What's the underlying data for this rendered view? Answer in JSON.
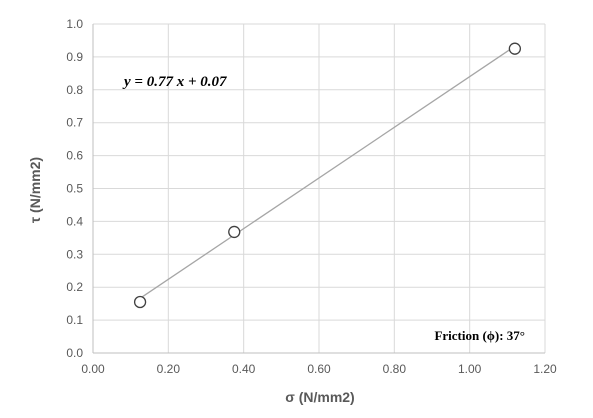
{
  "chart_data": {
    "type": "scatter",
    "title": "",
    "xlabel": "σ (N/mm2)",
    "ylabel": "τ  (N/mm2)",
    "xlim": [
      0,
      1.2
    ],
    "ylim": [
      0,
      1.0
    ],
    "x_ticks": [
      "0.00",
      "0.20",
      "0.40",
      "0.60",
      "0.80",
      "1.00",
      "1.20"
    ],
    "y_ticks": [
      "0.0",
      "0.1",
      "0.2",
      "0.3",
      "0.4",
      "0.5",
      "0.6",
      "0.7",
      "0.8",
      "0.9",
      "1.0"
    ],
    "grid": true,
    "legend": "none",
    "series": [
      {
        "points": [
          {
            "x": 0.125,
            "y": 0.155
          },
          {
            "x": 0.375,
            "y": 0.368
          },
          {
            "x": 1.12,
            "y": 0.925
          }
        ]
      }
    ],
    "trendline": {
      "slope": 0.77,
      "intercept": 0.07,
      "x_range": [
        0.125,
        1.12
      ]
    },
    "annotations": {
      "equation": "y = 0.77 x + 0.07",
      "friction": "Friction (ϕ): 37°"
    },
    "colors": {
      "marker_stroke": "#404040",
      "trendline": "#a6a6a6",
      "grid": "#d9d9d9",
      "axis": "#bfbfbf",
      "text": "#595959"
    }
  }
}
